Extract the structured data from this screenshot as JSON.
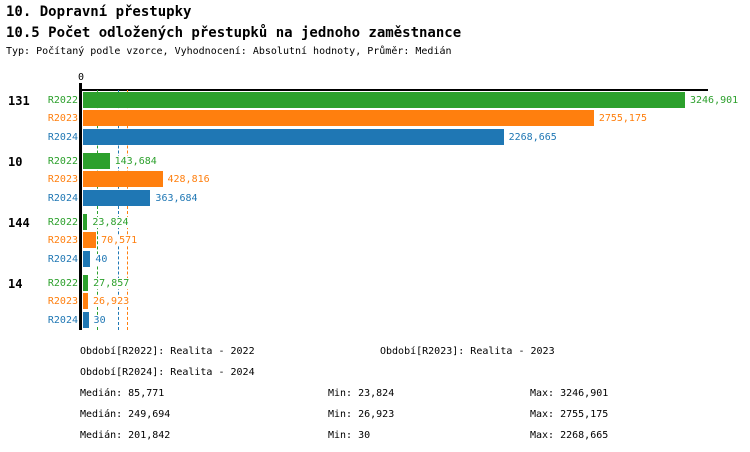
{
  "page": {
    "title": "10. Dopravní přestupky",
    "subtitle": "10.5 Počet odložených přestupků na jednoho zaměstnance",
    "meta": "Typ: Počítaný podle vzorce, Vyhodnocení: Absolutní hodnoty, Průměr: Medián"
  },
  "chart_data": {
    "type": "bar",
    "orientation": "horizontal",
    "value_axis": {
      "zero_label": "0",
      "xlim": [
        0,
        3382
      ],
      "decimal_separator": ","
    },
    "average_kind": "Medián",
    "series": [
      {
        "id": "R2022",
        "label": "R2022",
        "color": "#2CA02C",
        "legend": "Období[R2022]: Realita - 2022",
        "median": 85.771,
        "min": 23.824,
        "max": 3246.901,
        "stats": {
          "median": "Medián: 85,771",
          "min": "Min: 23,824",
          "max": "Max: 3246,901"
        }
      },
      {
        "id": "R2023",
        "label": "R2023",
        "color": "#FF7F0E",
        "legend": "Období[R2023]: Realita - 2023",
        "median": 249.694,
        "min": 26.923,
        "max": 2755.175,
        "stats": {
          "median": "Medián: 249,694",
          "min": "Min: 26,923",
          "max": "Max: 2755,175"
        }
      },
      {
        "id": "R2024",
        "label": "R2024",
        "color": "#1F77B4",
        "legend": "Období[R2024]: Realita - 2024",
        "median": 201.842,
        "min": 30,
        "max": 2268.665,
        "stats": {
          "median": "Medián: 201,842",
          "min": "Min: 30",
          "max": "Max: 2268,665"
        }
      }
    ],
    "groups": [
      {
        "label": "131",
        "bars": [
          {
            "series": "R2022",
            "value": 3246.901,
            "display": "3246,901"
          },
          {
            "series": "R2023",
            "value": 2755.175,
            "display": "2755,175"
          },
          {
            "series": "R2024",
            "value": 2268.665,
            "display": "2268,665"
          }
        ]
      },
      {
        "label": "10",
        "bars": [
          {
            "series": "R2022",
            "value": 143.684,
            "display": "143,684"
          },
          {
            "series": "R2023",
            "value": 428.816,
            "display": "428,816"
          },
          {
            "series": "R2024",
            "value": 363.684,
            "display": "363,684"
          }
        ]
      },
      {
        "label": "144",
        "bars": [
          {
            "series": "R2022",
            "value": 23.824,
            "display": "23,824"
          },
          {
            "series": "R2023",
            "value": 70.571,
            "display": "70,571"
          },
          {
            "series": "R2024",
            "value": 40,
            "display": "40"
          }
        ]
      },
      {
        "label": "14",
        "bars": [
          {
            "series": "R2022",
            "value": 27.857,
            "display": "27,857"
          },
          {
            "series": "R2023",
            "value": 26.923,
            "display": "26,923"
          },
          {
            "series": "R2024",
            "value": 30,
            "display": "30"
          }
        ]
      }
    ]
  }
}
